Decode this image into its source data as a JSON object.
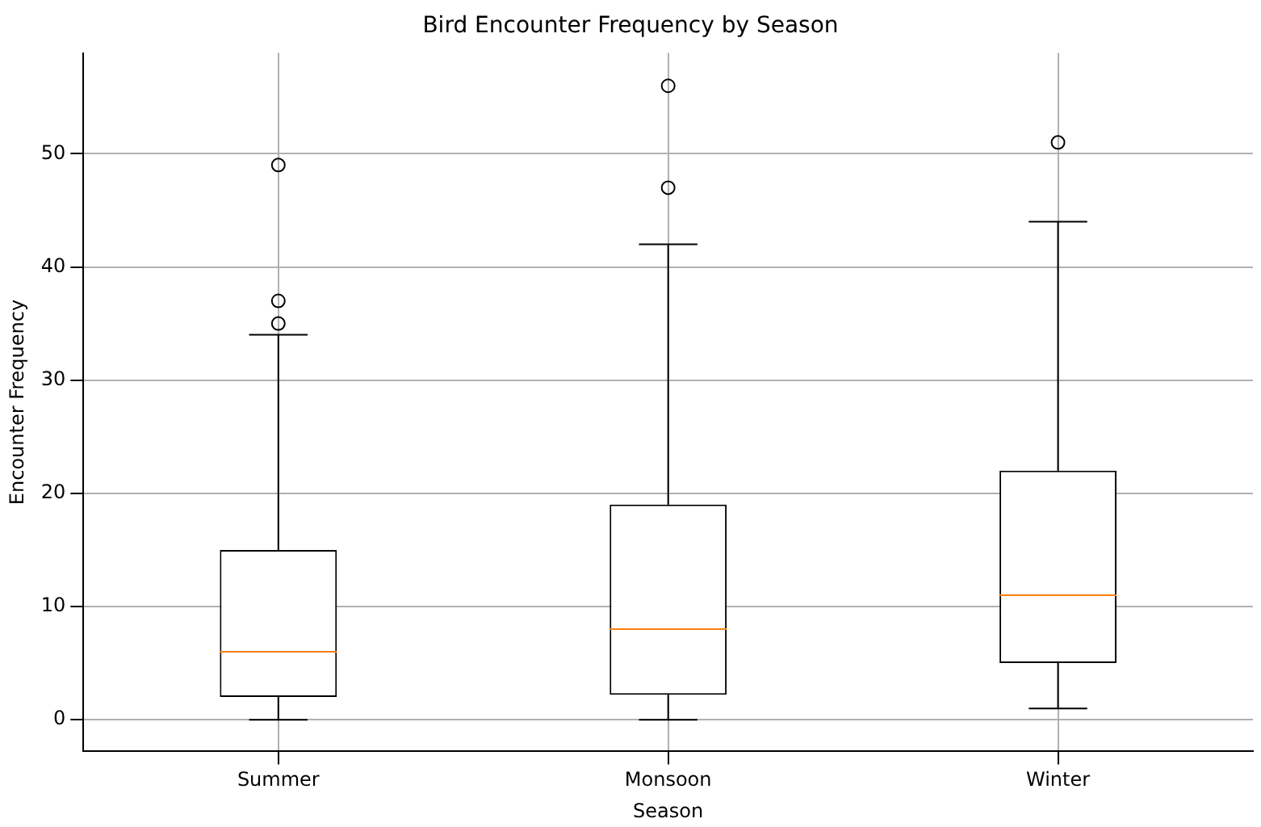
{
  "chart_data": {
    "type": "box",
    "title": "Bird Encounter Frequency by Season",
    "xlabel": "Season",
    "ylabel": "Encounter Frequency",
    "categories": [
      "Summer",
      "Monsoon",
      "Winter"
    ],
    "color": "#000000",
    "boxes": [
      {
        "low": 0,
        "q1": 2,
        "median": 6,
        "q3": 15,
        "high": 34,
        "outliers": [
          35,
          37,
          49
        ]
      },
      {
        "low": 0,
        "q1": 2.2,
        "median": 8,
        "q3": 19,
        "high": 42,
        "outliers": [
          47,
          56
        ]
      },
      {
        "low": 1,
        "q1": 5,
        "median": 11,
        "q3": 22,
        "high": 44,
        "outliers": [
          51
        ]
      }
    ],
    "ylim": [
      -2.8,
      58.9
    ],
    "yticks": [
      0,
      10,
      20,
      30,
      40,
      50
    ],
    "grid": true,
    "legend": false
  }
}
